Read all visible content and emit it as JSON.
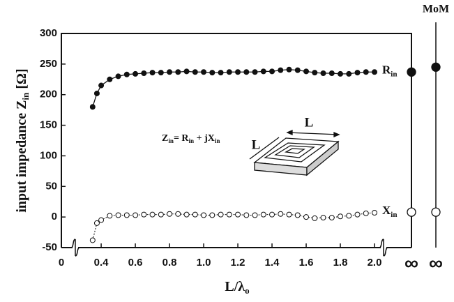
{
  "chart_data": {
    "type": "line",
    "y_label": [
      "input impedance Z",
      "in",
      " [Ω]"
    ],
    "x_label": [
      "L/λ",
      "o"
    ],
    "equation": [
      "Z",
      "in",
      "= R",
      "in",
      " + jX",
      "in"
    ],
    "inset_labels": [
      "L",
      "L"
    ],
    "x_origin_label": "0",
    "x": [
      0.35,
      0.375,
      0.4,
      0.45,
      0.5,
      0.55,
      0.6,
      0.65,
      0.7,
      0.75,
      0.8,
      0.85,
      0.9,
      0.95,
      1.0,
      1.05,
      1.1,
      1.15,
      1.2,
      1.25,
      1.3,
      1.35,
      1.4,
      1.45,
      1.5,
      1.55,
      1.6,
      1.65,
      1.7,
      1.75,
      1.8,
      1.85,
      1.9,
      1.95,
      2.0
    ],
    "series": [
      {
        "name": "R",
        "name_sub": "in",
        "color": "#111111",
        "filled": true,
        "values": [
          180,
          202,
          215,
          225,
          230,
          233,
          234,
          235,
          236,
          236,
          237,
          237,
          238,
          237,
          237,
          236,
          236,
          237,
          237,
          237,
          237,
          238,
          238,
          240,
          241,
          240,
          238,
          236,
          235,
          235,
          234,
          234,
          236,
          237,
          237
        ],
        "infinity": 237,
        "mom": 245
      },
      {
        "name": "X",
        "name_sub": "in",
        "color": "#111111",
        "filled": false,
        "values": [
          -38,
          -10,
          -5,
          2,
          3,
          3,
          3,
          4,
          4,
          4,
          5,
          5,
          4,
          4,
          3,
          3,
          4,
          4,
          4,
          3,
          3,
          4,
          4,
          5,
          4,
          3,
          0,
          -2,
          -1,
          -1,
          1,
          2,
          4,
          6,
          7
        ],
        "infinity": 8,
        "mom": 8
      }
    ],
    "mom_label": "MoM",
    "infinity_label": "∞",
    "xlim": [
      0.167,
      2.053
    ],
    "ylim": [
      -50,
      300
    ],
    "xticks": [
      0.4,
      0.6,
      0.8,
      {
        "value": 1.0,
        "label": "1.0"
      },
      1.2,
      1.4,
      1.6,
      1.8,
      {
        "value": 2.0,
        "label": "2.0"
      }
    ],
    "yticks": [
      -50,
      0,
      50,
      100,
      150,
      200,
      250,
      300
    ]
  }
}
